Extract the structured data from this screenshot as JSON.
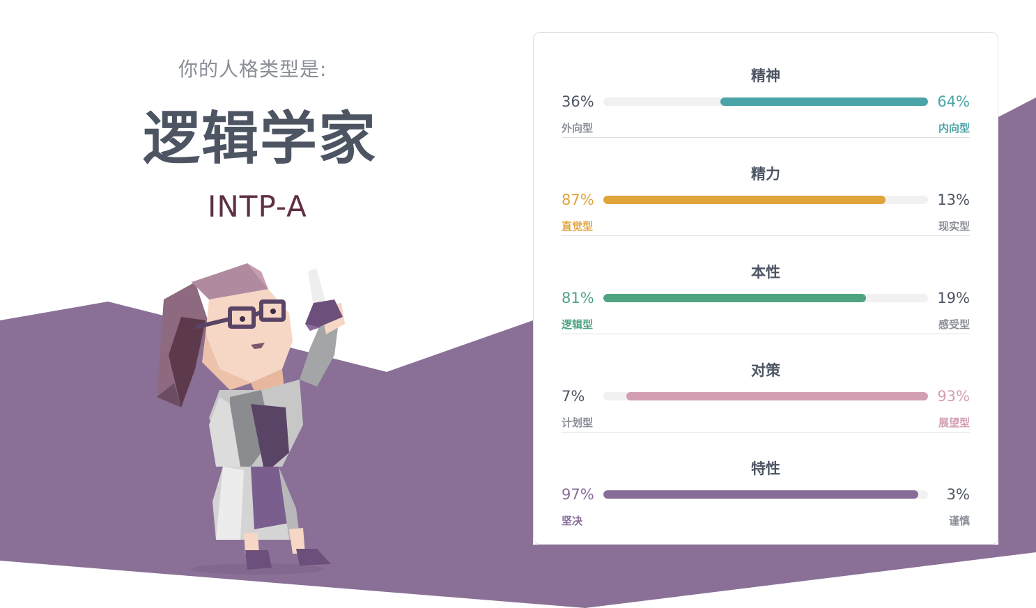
{
  "header": {
    "intro": "你的人格类型是:",
    "type_name": "逻辑学家",
    "type_code": "INTP-A"
  },
  "colors": {
    "purple": "#8a7096",
    "teal": "#4aa3a6",
    "yellow": "#dfa43b",
    "green": "#4fa381",
    "pink": "#d29eb4",
    "violet": "#876c97"
  },
  "traits": [
    {
      "title": "精神",
      "left_pct": "36%",
      "right_pct": "64%",
      "left_label": "外向型",
      "right_label": "内向型",
      "dominant": "right",
      "dominant_value": 64,
      "color": "#4aa3a6"
    },
    {
      "title": "精力",
      "left_pct": "87%",
      "right_pct": "13%",
      "left_label": "直觉型",
      "right_label": "现实型",
      "dominant": "left",
      "dominant_value": 87,
      "color": "#dfa43b"
    },
    {
      "title": "本性",
      "left_pct": "81%",
      "right_pct": "19%",
      "left_label": "逻辑型",
      "right_label": "感受型",
      "dominant": "left",
      "dominant_value": 81,
      "color": "#4fa381"
    },
    {
      "title": "对策",
      "left_pct": "7%",
      "right_pct": "93%",
      "left_label": "计划型",
      "right_label": "展望型",
      "dominant": "right",
      "dominant_value": 93,
      "color": "#d29eb4"
    },
    {
      "title": "特性",
      "left_pct": "97%",
      "right_pct": "3%",
      "left_label": "坚决",
      "right_label": "谨慎",
      "dominant": "left",
      "dominant_value": 97,
      "color": "#876c97"
    }
  ]
}
